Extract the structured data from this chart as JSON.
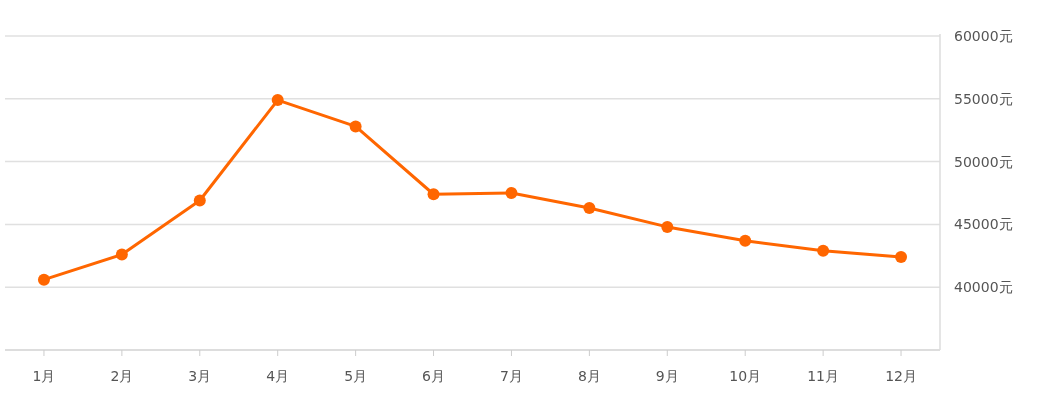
{
  "chart_data": {
    "type": "line",
    "categories": [
      "1月",
      "2月",
      "3月",
      "4月",
      "5月",
      "6月",
      "7月",
      "8月",
      "9月",
      "10月",
      "11月",
      "12月"
    ],
    "series": [
      {
        "color": "#ff6600",
        "values": [
          40600,
          42600,
          46900,
          54900,
          52800,
          47400,
          47500,
          46300,
          44800,
          43700,
          42900,
          42400
        ]
      }
    ],
    "ylim": [
      35000,
      60000
    ],
    "yticks": [
      {
        "value": 40000,
        "label": "40000元"
      },
      {
        "value": 45000,
        "label": "45000元"
      },
      {
        "value": 50000,
        "label": "50000元"
      },
      {
        "value": 55000,
        "label": "55000元"
      },
      {
        "value": 60000,
        "label": "60000元"
      }
    ],
    "grid": "y",
    "marker": "circle",
    "line_style": "solid"
  }
}
